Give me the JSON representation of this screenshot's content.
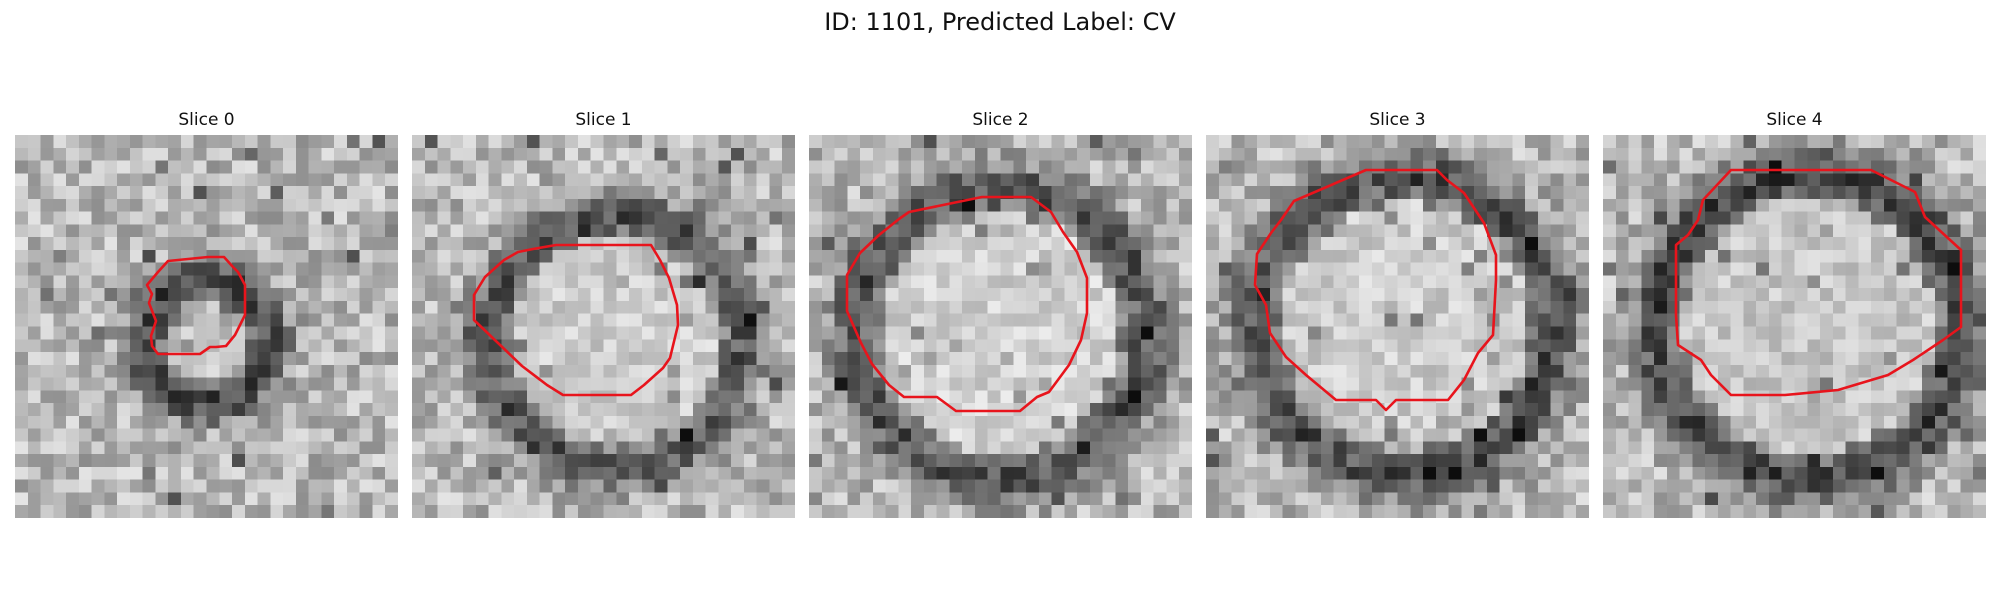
{
  "figure": {
    "title": "ID: 1101, Predicted Label: CV"
  },
  "colors": {
    "contour": "#e8141c",
    "background": "#ffffff"
  },
  "panels": [
    {
      "title": "Slice 0"
    },
    {
      "title": "Slice 1"
    },
    {
      "title": "Slice 2"
    },
    {
      "title": "Slice 3"
    },
    {
      "title": "Slice 4"
    }
  ]
}
